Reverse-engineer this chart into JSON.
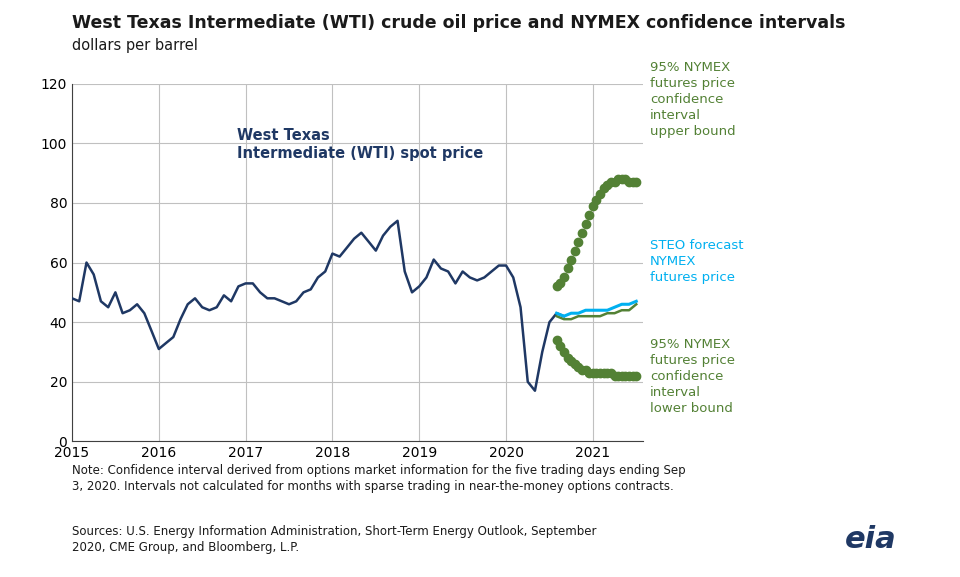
{
  "title": "West Texas Intermediate (WTI) crude oil price and NYMEX confidence intervals",
  "subtitle": "dollars per barrel",
  "title_color": "#1a1a1a",
  "subtitle_color": "#1a1a1a",
  "background_color": "#ffffff",
  "grid_color": "#c0c0c0",
  "ylim": [
    0,
    120
  ],
  "yticks": [
    0,
    20,
    40,
    60,
    80,
    100,
    120
  ],
  "wti_color": "#1f3864",
  "steo_color": "#00b0f0",
  "nymex_color": "#538135",
  "note_text": "Note: Confidence interval derived from options market information for the five trading days ending Sep\n3, 2020. Intervals not calculated for months with sparse trading in near-the-money options contracts.",
  "source_text": "Sources: U.S. Energy Information Administration, Short-Term Energy Outlook, September\n2020, CME Group, and Bloomberg, L.P.",
  "wti_x": [
    2015.0,
    2015.083,
    2015.167,
    2015.25,
    2015.333,
    2015.417,
    2015.5,
    2015.583,
    2015.667,
    2015.75,
    2015.833,
    2015.917,
    2016.0,
    2016.083,
    2016.167,
    2016.25,
    2016.333,
    2016.417,
    2016.5,
    2016.583,
    2016.667,
    2016.75,
    2016.833,
    2016.917,
    2017.0,
    2017.083,
    2017.167,
    2017.25,
    2017.333,
    2017.417,
    2017.5,
    2017.583,
    2017.667,
    2017.75,
    2017.833,
    2017.917,
    2018.0,
    2018.083,
    2018.167,
    2018.25,
    2018.333,
    2018.417,
    2018.5,
    2018.583,
    2018.667,
    2018.75,
    2018.833,
    2018.917,
    2019.0,
    2019.083,
    2019.167,
    2019.25,
    2019.333,
    2019.417,
    2019.5,
    2019.583,
    2019.667,
    2019.75,
    2019.833,
    2019.917,
    2020.0,
    2020.083,
    2020.167,
    2020.25,
    2020.333,
    2020.417,
    2020.5,
    2020.583,
    2020.667
  ],
  "wti_y": [
    48,
    47,
    60,
    56,
    47,
    45,
    50,
    43,
    44,
    46,
    43,
    37,
    31,
    33,
    35,
    41,
    46,
    48,
    45,
    44,
    45,
    49,
    47,
    52,
    53,
    53,
    50,
    48,
    48,
    47,
    46,
    47,
    50,
    51,
    55,
    57,
    63,
    62,
    65,
    68,
    70,
    67,
    64,
    69,
    72,
    74,
    57,
    50,
    52,
    55,
    61,
    58,
    57,
    53,
    57,
    55,
    54,
    55,
    57,
    59,
    59,
    55,
    45,
    20,
    17,
    30,
    40,
    43,
    42
  ],
  "steo_x": [
    2020.583,
    2020.667,
    2020.75,
    2020.833,
    2020.917,
    2021.0,
    2021.083,
    2021.167,
    2021.25,
    2021.333,
    2021.417,
    2021.5
  ],
  "steo_y": [
    43,
    42,
    43,
    43,
    44,
    44,
    44,
    44,
    45,
    46,
    46,
    47
  ],
  "nymex_x": [
    2020.583,
    2020.667,
    2020.75,
    2020.833,
    2020.917,
    2021.0,
    2021.083,
    2021.167,
    2021.25,
    2021.333,
    2021.417,
    2021.5
  ],
  "nymex_y": [
    42,
    41,
    41,
    42,
    42,
    42,
    42,
    43,
    43,
    44,
    44,
    46
  ],
  "upper_x": [
    2020.583,
    2020.625,
    2020.667,
    2020.708,
    2020.75,
    2020.792,
    2020.833,
    2020.875,
    2020.917,
    2020.958,
    2021.0,
    2021.042,
    2021.083,
    2021.125,
    2021.167,
    2021.208,
    2021.25,
    2021.292,
    2021.333,
    2021.375,
    2021.417,
    2021.458,
    2021.5
  ],
  "upper_y": [
    52,
    53,
    55,
    58,
    61,
    64,
    67,
    70,
    73,
    76,
    79,
    81,
    83,
    85,
    86,
    87,
    87,
    88,
    88,
    88,
    87,
    87,
    87
  ],
  "lower_x": [
    2020.583,
    2020.625,
    2020.667,
    2020.708,
    2020.75,
    2020.792,
    2020.833,
    2020.875,
    2020.917,
    2020.958,
    2021.0,
    2021.042,
    2021.083,
    2021.125,
    2021.167,
    2021.208,
    2021.25,
    2021.292,
    2021.333,
    2021.375,
    2021.417,
    2021.458,
    2021.5
  ],
  "lower_y": [
    34,
    32,
    30,
    28,
    27,
    26,
    25,
    24,
    24,
    23,
    23,
    23,
    23,
    23,
    23,
    23,
    22,
    22,
    22,
    22,
    22,
    22,
    22
  ],
  "xlim": [
    2015.0,
    2021.58
  ],
  "xtick_vals": [
    2015,
    2016,
    2017,
    2018,
    2019,
    2020,
    2021
  ]
}
